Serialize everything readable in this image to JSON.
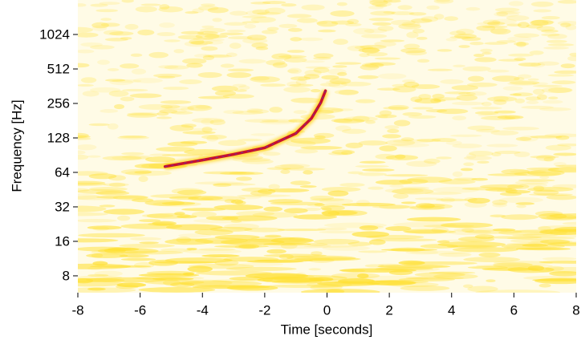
{
  "chart_data": {
    "type": "line",
    "xlabel": "Time [seconds]",
    "ylabel": "Frequency [Hz]",
    "xlim": [
      -8,
      8
    ],
    "xticks": [
      -8,
      -6,
      -4,
      -2,
      0,
      2,
      4,
      6,
      8
    ],
    "ylim": [
      5.7,
      2048
    ],
    "yticks": [
      8,
      16,
      32,
      64,
      128,
      256,
      512,
      1024
    ],
    "yscale": "log",
    "series": [
      {
        "color": "#c8102e",
        "x": [
          -5.2,
          -4,
          -3,
          -2,
          -1,
          -0.5,
          -0.2,
          -0.05
        ],
        "values": [
          72,
          82,
          92,
          105,
          140,
          190,
          260,
          330
        ]
      }
    ]
  }
}
